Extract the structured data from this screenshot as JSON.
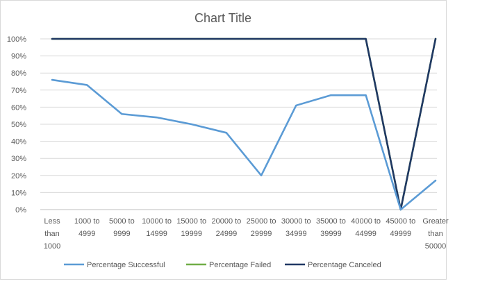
{
  "chart_data": {
    "type": "line",
    "title": "Chart Title",
    "xlabel": "",
    "ylabel": "",
    "ylim": [
      0,
      100
    ],
    "y_ticks": [
      "0%",
      "10%",
      "20%",
      "30%",
      "40%",
      "50%",
      "60%",
      "70%",
      "80%",
      "90%",
      "100%"
    ],
    "y_tick_values": [
      0,
      10,
      20,
      30,
      40,
      50,
      60,
      70,
      80,
      90,
      100
    ],
    "grid": true,
    "legend_position": "bottom",
    "categories": [
      [
        "Less",
        "than",
        "1000"
      ],
      [
        "1000 to",
        "4999"
      ],
      [
        "5000 to",
        "9999"
      ],
      [
        "10000 to",
        "14999"
      ],
      [
        "15000 to",
        "19999"
      ],
      [
        "20000 to",
        "24999"
      ],
      [
        "25000 to",
        "29999"
      ],
      [
        "30000 to",
        "34999"
      ],
      [
        "35000 to",
        "39999"
      ],
      [
        "40000 to",
        "44999"
      ],
      [
        "45000 to",
        "49999"
      ],
      [
        "Greater",
        "than",
        "50000"
      ]
    ],
    "series": [
      {
        "name": "Percentage Successful",
        "color": "#5b9bd5",
        "values": [
          76,
          73,
          56,
          54,
          50,
          45,
          20,
          61,
          67,
          67,
          0,
          17
        ]
      },
      {
        "name": "Percentage Failed",
        "color": "#70ad47",
        "values": [
          100,
          100,
          100,
          100,
          100,
          100,
          100,
          100,
          100,
          100,
          0,
          100
        ]
      },
      {
        "name": "Percentage Canceled",
        "color": "#203864",
        "values": [
          100,
          100,
          100,
          100,
          100,
          100,
          100,
          100,
          100,
          100,
          0,
          100
        ]
      }
    ]
  }
}
